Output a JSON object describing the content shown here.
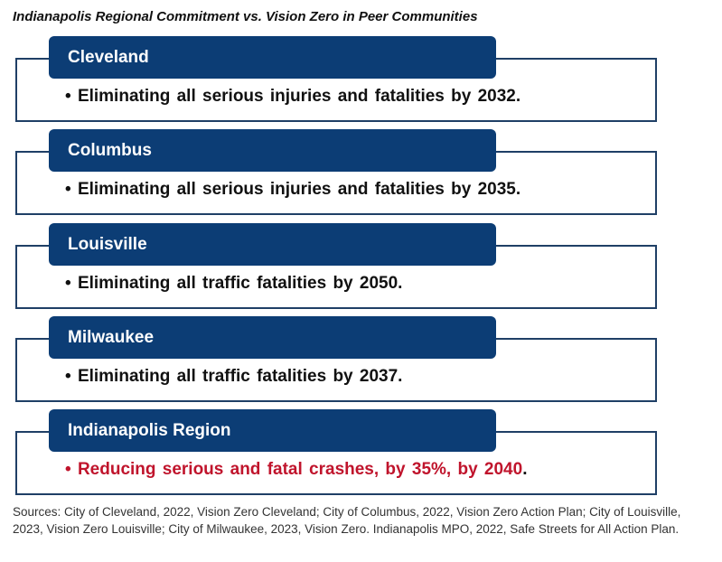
{
  "title": "Indianapolis Regional Commitment vs. Vision Zero in Peer Communities",
  "bullet": "•",
  "groups": [
    {
      "name": "Cleveland",
      "text": "Eliminating all serious injuries and fatalities by 2032."
    },
    {
      "name": "Columbus",
      "text": "Eliminating all serious injuries and fatalities by 2035."
    },
    {
      "name": "Louisville",
      "text": "Eliminating all traffic fatalities by 2050."
    },
    {
      "name": "Milwaukee",
      "text": "Eliminating all traffic fatalities by 2037."
    },
    {
      "name": "Indianapolis Region",
      "text": "Reducing serious and fatal crashes, by 35%, by 2040",
      "suffix": "."
    }
  ],
  "sources": "Sources: City of Cleveland, 2022, Vision Zero Cleveland; City of Columbus, 2022, Vision Zero Action Plan; City of Louisville, 2023, Vision Zero Louisville; City of Milwaukee, 2023, Vision Zero. Indianapolis MPO, 2022, Safe Streets for All Action Plan.",
  "colors": {
    "header_fill": "#0c3d75",
    "frame_border": "#1f3f66",
    "highlight_text": "#c0142c"
  }
}
